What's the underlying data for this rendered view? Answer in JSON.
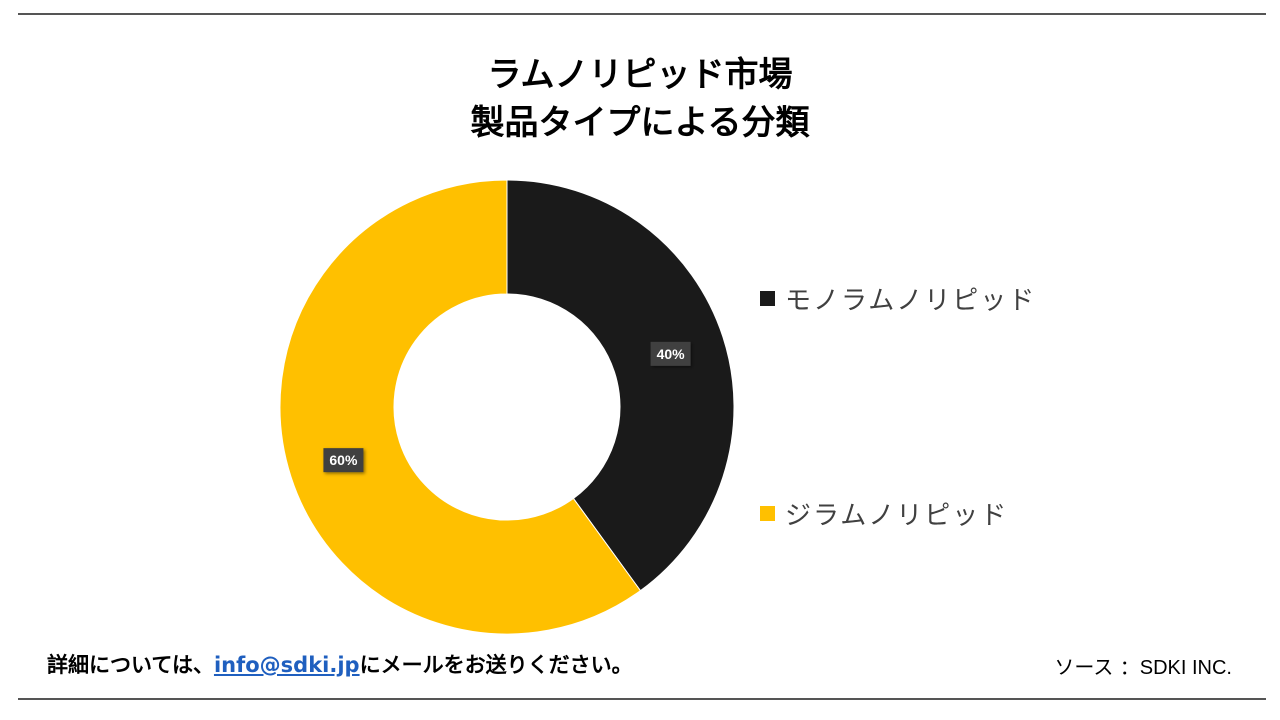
{
  "chart_data": {
    "type": "pie",
    "donut": true,
    "title_line1": "ラムノリピッド市場",
    "title_line2": "製品タイプによる分類",
    "categories": [
      "モノラムノリピッド",
      "ジラムノリピッド"
    ],
    "values": [
      40,
      60
    ],
    "data_labels": [
      "40%",
      "60%"
    ],
    "colors": [
      "#1a1a1a",
      "#ffc000"
    ],
    "legend_position": "right"
  },
  "footer": {
    "note_prefix": "詳細については、",
    "email": "info@sdki.jp",
    "note_suffix": "にメールをお送りください。",
    "source_label": "ソース ：",
    "source_value": "SDKI INC."
  }
}
